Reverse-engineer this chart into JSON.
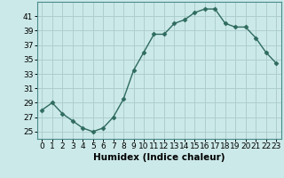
{
  "x": [
    0,
    1,
    2,
    3,
    4,
    5,
    6,
    7,
    8,
    9,
    10,
    11,
    12,
    13,
    14,
    15,
    16,
    17,
    18,
    19,
    20,
    21,
    22,
    23
  ],
  "y": [
    28,
    29,
    27.5,
    26.5,
    25.5,
    25,
    25.5,
    27,
    29.5,
    33.5,
    36,
    38.5,
    38.5,
    40,
    40.5,
    41.5,
    42,
    42,
    40,
    39.5,
    39.5,
    38,
    36,
    34.5
  ],
  "line_color": "#2e6b5e",
  "marker": "D",
  "marker_size": 2.5,
  "bg_color": "#cce9e9",
  "grid_color": "#aecece",
  "xlabel": "Humidex (Indice chaleur)",
  "xlim": [
    -0.5,
    23.5
  ],
  "ylim": [
    24,
    43
  ],
  "yticks": [
    25,
    27,
    29,
    31,
    33,
    35,
    37,
    39,
    41
  ],
  "xticks": [
    0,
    1,
    2,
    3,
    4,
    5,
    6,
    7,
    8,
    9,
    10,
    11,
    12,
    13,
    14,
    15,
    16,
    17,
    18,
    19,
    20,
    21,
    22,
    23
  ],
  "tick_label_fontsize": 6.5,
  "xlabel_fontsize": 7.5
}
